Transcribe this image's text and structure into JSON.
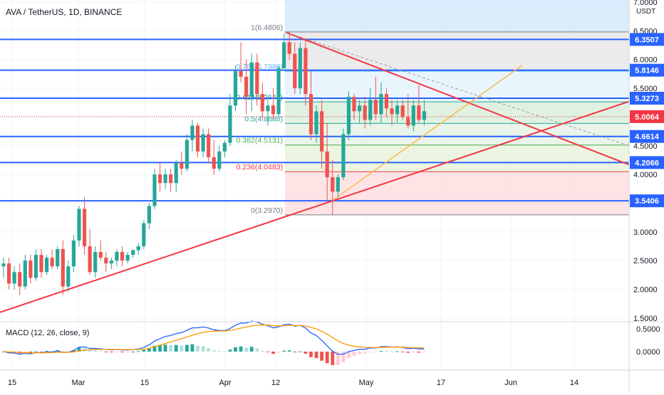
{
  "title": "AVA / TetherUS, 1D, BINANCE",
  "currency_label": "USDT",
  "colors": {
    "up": "#26a69a",
    "down": "#ef5350",
    "hline": "#2962ff",
    "trend": "#f23645",
    "fib_line": "#ffb74d",
    "dashed": "#9e9e9e",
    "macd": "#2962ff",
    "signal": "#ff9800",
    "hist_pos": "#26a69a",
    "hist_pos_light": "#b2dfdb",
    "hist_neg": "#ef5350",
    "hist_neg_light": "#ffcdd2",
    "last_price": "#f23645"
  },
  "price_axis": {
    "ticks": [
      "7.0000",
      "6.5000",
      "6.0000",
      "5.5000",
      "5.0000",
      "4.5000",
      "4.0000",
      "3.5000",
      "3.0000",
      "2.5000",
      "2.0000",
      "1.5000"
    ]
  },
  "time_axis": {
    "ticks": [
      "15",
      "Mar",
      "15",
      "Apr",
      "12",
      "May",
      "17",
      "Jun",
      "14"
    ]
  },
  "horizontal_levels": [
    {
      "label": "6.3507"
    },
    {
      "label": "5.8146"
    },
    {
      "label": "5.3273"
    },
    {
      "label": "4.6614"
    },
    {
      "label": "4.2066"
    },
    {
      "label": "3.5406"
    }
  ],
  "last_price": {
    "label": "5.0064"
  },
  "fibonacci": {
    "levels": [
      {
        "text": "1(6.4806)",
        "color": "#787b86"
      },
      {
        "text": "0.786(5.7986)",
        "color": "#64b5f6"
      },
      {
        "text": "0.618(5.2644)",
        "color": "#26a69a"
      },
      {
        "text": "0.5(4.8888)",
        "color": "#26a69a"
      },
      {
        "text": "0.382(4.5131)",
        "color": "#4caf50"
      },
      {
        "text": "0.236(4.0483)",
        "color": "#f23645"
      },
      {
        "text": "0(3.2970)",
        "color": "#787b86"
      }
    ]
  },
  "macd": {
    "label": "MACD (12, 26, close, 9)",
    "ticks": [
      "0.5000",
      "0.0000"
    ]
  },
  "chart_data": {
    "type": "candlestick",
    "title": "AVA / TetherUS, 1D, BINANCE",
    "ylabel": "USDT",
    "ylim": [
      1.5,
      7.0
    ],
    "ohlc_approx": [
      [
        2.4,
        2.55,
        2.2,
        2.45
      ],
      [
        2.45,
        2.55,
        2.0,
        2.1
      ],
      [
        2.1,
        2.4,
        2.0,
        2.3
      ],
      [
        2.3,
        2.45,
        1.9,
        2.05
      ],
      [
        2.05,
        2.6,
        2.0,
        2.5
      ],
      [
        2.5,
        2.6,
        2.1,
        2.2
      ],
      [
        2.2,
        2.7,
        2.15,
        2.6
      ],
      [
        2.6,
        2.7,
        2.2,
        2.3
      ],
      [
        2.3,
        2.6,
        2.25,
        2.55
      ],
      [
        2.55,
        2.7,
        2.35,
        2.4
      ],
      [
        2.4,
        2.75,
        2.35,
        2.7
      ],
      [
        2.7,
        2.85,
        1.9,
        2.05
      ],
      [
        2.05,
        2.5,
        1.95,
        2.4
      ],
      [
        2.4,
        2.95,
        2.3,
        2.85
      ],
      [
        2.85,
        3.45,
        2.75,
        3.4
      ],
      [
        3.4,
        3.6,
        2.6,
        2.75
      ],
      [
        2.75,
        3.05,
        2.25,
        2.3
      ],
      [
        2.3,
        2.75,
        2.2,
        2.65
      ],
      [
        2.65,
        2.85,
        2.5,
        2.55
      ],
      [
        2.55,
        2.65,
        2.3,
        2.45
      ],
      [
        2.45,
        2.55,
        2.35,
        2.5
      ],
      [
        2.5,
        2.7,
        2.4,
        2.65
      ],
      [
        2.65,
        2.75,
        2.4,
        2.5
      ],
      [
        2.5,
        2.65,
        2.45,
        2.6
      ],
      [
        2.6,
        2.7,
        2.55,
        2.68
      ],
      [
        2.68,
        2.8,
        2.6,
        2.75
      ],
      [
        2.75,
        3.2,
        2.7,
        3.15
      ],
      [
        3.15,
        3.5,
        3.05,
        3.45
      ],
      [
        3.45,
        4.1,
        3.4,
        4.0
      ],
      [
        4.0,
        4.2,
        3.7,
        3.85
      ],
      [
        3.85,
        4.1,
        3.75,
        4.0
      ],
      [
        4.0,
        4.1,
        3.7,
        3.85
      ],
      [
        3.85,
        4.25,
        3.7,
        4.2
      ],
      [
        4.2,
        4.4,
        4.0,
        4.1
      ],
      [
        4.1,
        4.7,
        4.05,
        4.6
      ],
      [
        4.6,
        4.95,
        4.4,
        4.85
      ],
      [
        4.85,
        4.9,
        4.3,
        4.4
      ],
      [
        4.4,
        4.8,
        4.3,
        4.7
      ],
      [
        4.7,
        4.8,
        4.2,
        4.3
      ],
      [
        4.3,
        4.6,
        4.0,
        4.1
      ],
      [
        4.1,
        4.5,
        4.05,
        4.4
      ],
      [
        4.4,
        4.6,
        4.3,
        4.55
      ],
      [
        4.55,
        5.4,
        4.5,
        5.2
      ],
      [
        5.2,
        5.9,
        5.1,
        5.8
      ],
      [
        5.8,
        6.3,
        5.6,
        5.7
      ],
      [
        5.7,
        6.0,
        5.05,
        5.35
      ],
      [
        5.35,
        6.1,
        5.1,
        5.95
      ],
      [
        5.95,
        6.1,
        5.2,
        5.4
      ],
      [
        5.4,
        5.6,
        4.95,
        5.1
      ],
      [
        5.1,
        5.3,
        4.85,
        5.2
      ],
      [
        5.2,
        5.5,
        4.95,
        5.05
      ],
      [
        5.05,
        5.9,
        5.0,
        5.85
      ],
      [
        5.85,
        6.45,
        5.8,
        6.3
      ],
      [
        6.3,
        6.48,
        6.0,
        6.1
      ],
      [
        6.1,
        6.3,
        5.4,
        5.5
      ],
      [
        5.5,
        6.3,
        5.4,
        6.2
      ],
      [
        6.2,
        6.35,
        5.2,
        5.4
      ],
      [
        5.4,
        5.8,
        4.6,
        4.7
      ],
      [
        4.7,
        5.2,
        4.55,
        5.1
      ],
      [
        5.1,
        5.3,
        4.1,
        4.4
      ],
      [
        4.4,
        4.9,
        3.55,
        3.95
      ],
      [
        3.95,
        4.25,
        3.3,
        3.7
      ],
      [
        3.7,
        4.0,
        3.6,
        3.95
      ],
      [
        3.95,
        4.8,
        3.9,
        4.7
      ],
      [
        4.7,
        5.45,
        4.6,
        5.35
      ],
      [
        5.35,
        5.4,
        4.95,
        5.1
      ],
      [
        5.1,
        5.3,
        4.9,
        5.2
      ],
      [
        5.2,
        5.35,
        4.8,
        4.95
      ],
      [
        4.95,
        5.5,
        4.85,
        5.3
      ],
      [
        5.3,
        5.7,
        4.95,
        5.05
      ],
      [
        5.05,
        5.6,
        4.9,
        5.4
      ],
      [
        5.4,
        5.5,
        5.0,
        5.15
      ],
      [
        5.15,
        5.3,
        4.85,
        5.05
      ],
      [
        5.05,
        5.3,
        4.9,
        5.2
      ],
      [
        5.2,
        5.3,
        4.95,
        5.0
      ],
      [
        5.0,
        5.4,
        4.8,
        4.85
      ],
      [
        4.85,
        5.3,
        4.75,
        5.2
      ],
      [
        5.2,
        5.55,
        4.9,
        4.95
      ],
      [
        4.95,
        5.3,
        4.85,
        5.1
      ]
    ],
    "horizontal_levels": [
      6.3507,
      5.8146,
      5.3273,
      4.6614,
      4.2066,
      3.5406
    ],
    "last_price": 5.0064,
    "fibonacci_levels": [
      {
        "ratio": 1,
        "price": 6.4806
      },
      {
        "ratio": 0.786,
        "price": 5.7986
      },
      {
        "ratio": 0.618,
        "price": 5.2644
      },
      {
        "ratio": 0.5,
        "price": 4.8888
      },
      {
        "ratio": 0.382,
        "price": 4.5131
      },
      {
        "ratio": 0.236,
        "price": 4.0483
      },
      {
        "ratio": 0,
        "price": 3.297
      }
    ],
    "macd_ylim": [
      -0.3,
      0.6
    ]
  }
}
